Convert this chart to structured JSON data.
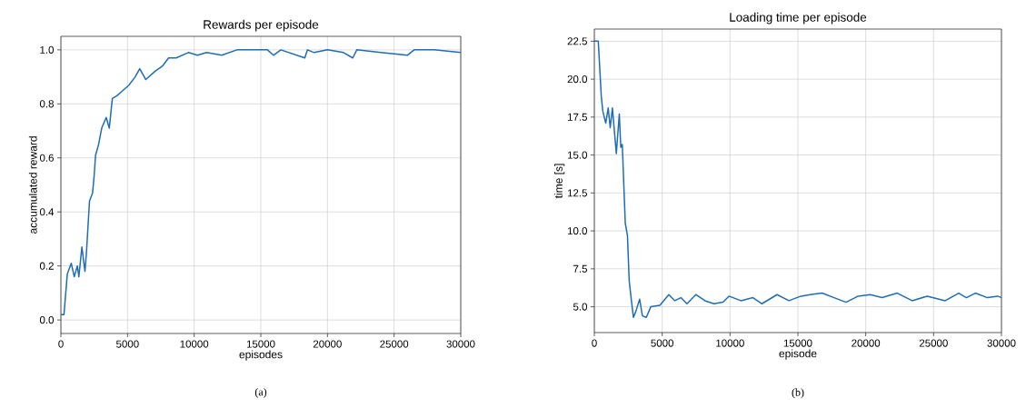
{
  "chart_data": [
    {
      "type": "line",
      "title": "Rewards per episode",
      "xlabel": "episodes",
      "ylabel": "accumulated reward",
      "annotations": [
        "(a)"
      ],
      "grid": true,
      "xlim": [
        0,
        30000
      ],
      "ylim": [
        -0.05,
        1.05
      ],
      "xticks": [
        0,
        5000,
        10000,
        15000,
        20000,
        25000,
        30000
      ],
      "yticks": [
        {
          "value": 0,
          "label": "0.0"
        },
        0.2,
        0.4,
        0.6,
        0.8,
        {
          "value": 1,
          "label": "1.0"
        }
      ],
      "series": [
        {
          "color": "#1f6db5",
          "x": [
            0,
            230,
            480,
            776,
            1005,
            1233,
            1347,
            1575,
            1804,
            1918,
            2146,
            2374,
            2488,
            2602,
            2830,
            3060,
            3400,
            3630,
            3860,
            4200,
            4660,
            5115,
            5570,
            5914,
            6370,
            7050,
            7620,
            8080,
            8650,
            9560,
            10250,
            10930,
            12070,
            13210,
            14350,
            15500,
            15950,
            16500,
            18300,
            18500,
            19000,
            20000,
            21200,
            21900,
            22200,
            24000,
            26000,
            26500,
            28000,
            30000
          ],
          "values": [
            0.02,
            0.02,
            0.17,
            0.21,
            0.16,
            0.2,
            0.16,
            0.27,
            0.18,
            0.25,
            0.44,
            0.47,
            0.53,
            0.61,
            0.65,
            0.71,
            0.75,
            0.71,
            0.82,
            0.83,
            0.85,
            0.87,
            0.9,
            0.93,
            0.89,
            0.92,
            0.94,
            0.97,
            0.97,
            0.99,
            0.98,
            0.99,
            0.98,
            1.0,
            1.0,
            1.0,
            0.98,
            1.0,
            0.97,
            1.0,
            0.99,
            1.0,
            0.99,
            0.97,
            1.0,
            0.99,
            0.98,
            1.0,
            1.0,
            0.99
          ]
        }
      ]
    },
    {
      "type": "line",
      "title": "Loading time per episode",
      "xlabel": "episode",
      "ylabel": "time [s]",
      "annotations": [
        "(b)"
      ],
      "grid": true,
      "xlim": [
        0,
        30000
      ],
      "ylim": [
        3.3,
        23.3
      ],
      "xticks": [
        0,
        5000,
        10000,
        15000,
        20000,
        25000,
        30000
      ],
      "yticks": [
        {
          "value": 5,
          "label": "5.0"
        },
        7.5,
        {
          "value": 10,
          "label": "10.0"
        },
        12.5,
        {
          "value": 15,
          "label": "15.0"
        },
        17.5,
        {
          "value": 20,
          "label": "20.0"
        },
        22.5
      ],
      "series": [
        {
          "color": "#1f6db5",
          "x": [
            0,
            290,
            510,
            620,
            840,
            1020,
            1170,
            1330,
            1620,
            1840,
            1950,
            2060,
            2280,
            2440,
            2570,
            2720,
            2880,
            3060,
            3340,
            3540,
            3830,
            4160,
            4830,
            5490,
            5930,
            6380,
            6820,
            7480,
            8150,
            8810,
            9480,
            9920,
            10800,
            11690,
            12350,
            13460,
            14340,
            15230,
            15900,
            16780,
            17670,
            18550,
            19440,
            20330,
            21210,
            22320,
            23420,
            24530,
            25860,
            26850,
            27410,
            28080,
            28960,
            29730,
            30000
          ],
          "values": [
            22.5,
            22.5,
            18.9,
            17.9,
            17.1,
            18.1,
            16.8,
            18.1,
            15.1,
            17.7,
            15.5,
            15.7,
            10.5,
            9.7,
            6.7,
            5.5,
            4.3,
            4.7,
            5.5,
            4.4,
            4.3,
            5.0,
            5.1,
            5.8,
            5.4,
            5.6,
            5.2,
            5.8,
            5.4,
            5.2,
            5.3,
            5.7,
            5.4,
            5.6,
            5.2,
            5.8,
            5.4,
            5.7,
            5.8,
            5.9,
            5.6,
            5.3,
            5.7,
            5.8,
            5.6,
            5.9,
            5.4,
            5.7,
            5.4,
            5.9,
            5.6,
            5.9,
            5.6,
            5.7,
            5.6
          ]
        }
      ]
    }
  ]
}
